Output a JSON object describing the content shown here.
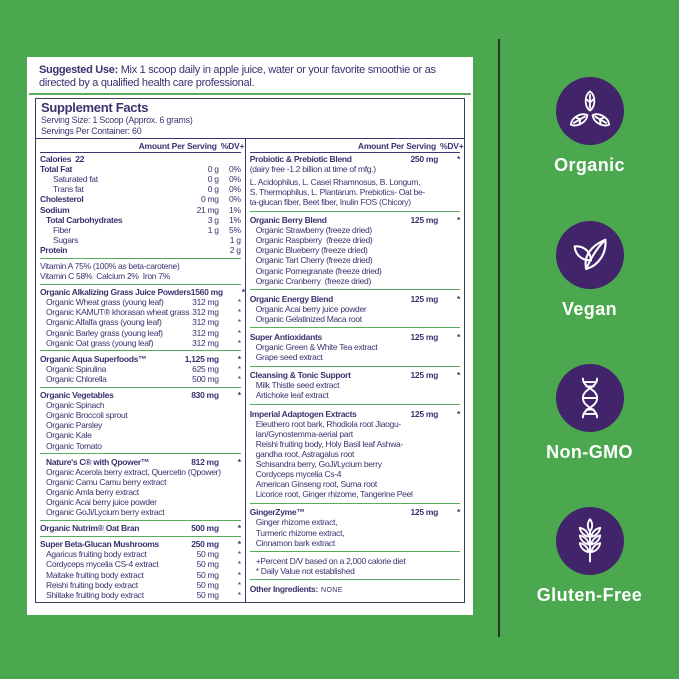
{
  "colors": {
    "background": "#4BA84E",
    "panel": "#FFFFFF",
    "text": "#3A336F",
    "rule_green": "#58AC5B",
    "badge_purple": "#41246A",
    "edge_line": "#1F3A28"
  },
  "suggested_use": {
    "label": "Suggested Use:",
    "text": " Mix 1 scoop daily in apple juice, water or your favorite smoothie or as directed by a qualified health care professional."
  },
  "facts": {
    "title": "Supplement Facts",
    "serving_size": "Serving Size: 1 Scoop (Approx. 6 grams)",
    "servings_per_container": "Servings Per Container: 60",
    "amount_header": "Amount Per Serving",
    "dv_header": "%DV+",
    "left_sections": [
      {
        "rows": [
          {
            "n": "Calories  22",
            "b": 1
          },
          {
            "n": "Total Fat",
            "b": 1,
            "a": "0 g",
            "d": "0%"
          },
          {
            "n": "Saturated fat",
            "i": 2,
            "a": "0 g",
            "d": "0%"
          },
          {
            "n": "Trans fat",
            "i": 2,
            "a": "0 g",
            "d": "0%"
          },
          {
            "n": "Cholesterol",
            "b": 1,
            "a": "0 mg",
            "d": "0%"
          },
          {
            "n": "Sodium",
            "b": 1,
            "a": "21 mg",
            "d": "1%"
          },
          {
            "n": "Total Carbohydrates",
            "b": 1,
            "i": 1,
            "a": "3 g",
            "d": "1%"
          },
          {
            "n": "Fiber",
            "i": 2,
            "a": "1 g",
            "d": "5%"
          },
          {
            "n": "Sugars",
            "i": 2,
            "a": "1 g"
          },
          {
            "n": "Protein",
            "b": 1,
            "a": "2 g"
          }
        ]
      },
      {
        "rows": [
          {
            "n": "Vitamin A 75% (100% as beta-carotene)"
          },
          {
            "n": "Vitamin C 58%  Calcium 2%  Iron 7%"
          }
        ]
      },
      {
        "rows": [
          {
            "n": "Organic Alkalizing Grass Juice Powders",
            "b": 1,
            "a": "1560 mg",
            "d": "*"
          },
          {
            "n": "Organic Wheat grass (young leaf)",
            "i": 1,
            "a": "312 mg",
            "d": "*"
          },
          {
            "n": "Organic KAMUT® khorasan wheat grass",
            "i": 1,
            "a": "312 mg",
            "d": "*"
          },
          {
            "n": "Organic Alfalfa grass (young leaf)",
            "i": 1,
            "a": "312 mg",
            "d": "*"
          },
          {
            "n": "Organic Barley grass (young leaf)",
            "i": 1,
            "a": "312 mg",
            "d": "*"
          },
          {
            "n": "Organic Oat grass (young leaf)",
            "i": 1,
            "a": "312 mg",
            "d": "*"
          }
        ]
      },
      {
        "rows": [
          {
            "n": "Organic Aqua Superfoods™",
            "b": 1,
            "a": "1,125 mg",
            "d": "*"
          },
          {
            "n": "Organic Spirulina",
            "i": 1,
            "a": "625 mg",
            "d": "*"
          },
          {
            "n": "Organic Chlorella",
            "i": 1,
            "a": "500 mg",
            "d": "*"
          }
        ]
      },
      {
        "rows": [
          {
            "n": "Organic Vegetables",
            "b": 1,
            "a": "830 mg",
            "d": "*"
          },
          {
            "n": "Organic Spinach",
            "i": 1
          },
          {
            "n": "Organic Broccoli sprout",
            "i": 1
          },
          {
            "n": "Organic Parsley",
            "i": 1
          },
          {
            "n": "Organic Kale",
            "i": 1
          },
          {
            "n": "Organic Tomato",
            "i": 1
          }
        ]
      },
      {
        "rows": [
          {
            "n": "Nature's C® with Qpower™",
            "b": 1,
            "i": 1,
            "a": "812 mg",
            "d": "*"
          },
          {
            "n": "Organic Acerola berry extract, Quercetin (Qpower)",
            "i": 1
          },
          {
            "n": "Organic Camu Camu berry extract",
            "i": 1
          },
          {
            "n": "Organic Amla berry extract",
            "i": 1
          },
          {
            "n": "Organic Acai berry juice powder",
            "i": 1
          },
          {
            "n": "Organic GoJi/Lycium berry extract",
            "i": 1
          }
        ]
      },
      {
        "rows": [
          {
            "n": "Organic Nutrim® Oat Bran",
            "b": 1,
            "a": "500 mg",
            "d": "*"
          }
        ]
      },
      {
        "rows": [
          {
            "n": "Super Beta-Glucan Mushrooms",
            "b": 1,
            "a": "250 mg",
            "d": "*"
          },
          {
            "n": "Agaricus fruiting body extract",
            "i": 1,
            "a": "50 mg",
            "d": "*"
          },
          {
            "n": "Cordyceps mycelia CS-4 extract",
            "i": 1,
            "a": "50 mg",
            "d": "*"
          },
          {
            "n": "Maitake fruiting body extract",
            "i": 1,
            "a": "50 mg",
            "d": "*"
          },
          {
            "n": "Reishi fruiting body extract",
            "i": 1,
            "a": "50 mg",
            "d": "*"
          },
          {
            "n": "Shiitake fruiting body extract",
            "i": 1,
            "a": "50 mg",
            "d": "*"
          }
        ]
      }
    ],
    "right_sections": [
      {
        "rows": [
          {
            "n": "Probiotic & Prebiotic Blend",
            "b": 1,
            "a": "250 mg",
            "d": "*"
          },
          {
            "n": "(dairy free -1.2 billion at time of mfg.)"
          },
          {
            "n": "L. Acidophilus, L. Casei Rhamnosus, B. Longum,",
            "g": 1
          },
          {
            "n": "S. Thermophilus, L. Plantarum. Prebiotics- Oat be-"
          },
          {
            "n": "ta-glucan fiber, Beet fiber, Inulin FOS (Chicory)"
          }
        ]
      },
      {
        "rows": [
          {
            "n": "Organic Berry Blend",
            "b": 1,
            "a": "125 mg",
            "d": "*"
          },
          {
            "n": "Organic Strawberry (freeze dried)",
            "i": 1
          },
          {
            "n": "Organic Raspberry  (freeze dried)",
            "i": 1
          },
          {
            "n": "Organic Blueberry (freeze dried)",
            "i": 1
          },
          {
            "n": "Organic Tart Cherry (freeze dried)",
            "i": 1
          },
          {
            "n": "Organic Pomegranate (freeze dried)",
            "i": 1
          },
          {
            "n": "Organic Cranberry  (freeze dried)",
            "i": 1
          }
        ]
      },
      {
        "rows": [
          {
            "n": "Organic Energy Blend",
            "b": 1,
            "a": "125 mg",
            "d": "*"
          },
          {
            "n": "Organic Acai berry juice powder",
            "i": 1
          },
          {
            "n": "Organic Gelatinized Maca root",
            "i": 1
          }
        ]
      },
      {
        "rows": [
          {
            "n": "Super Antioxidants",
            "b": 1,
            "a": "125 mg",
            "d": "*"
          },
          {
            "n": "Organic Green & White Tea extract",
            "i": 1
          },
          {
            "n": "Grape seed extract",
            "i": 1
          }
        ]
      },
      {
        "rows": [
          {
            "n": "Cleansing & Tonic Support",
            "b": 1,
            "a": "125 mg",
            "d": "*"
          },
          {
            "n": "Milk Thistle seed extract",
            "i": 1
          },
          {
            "n": "Artichoke leaf extract",
            "i": 1
          }
        ]
      },
      {
        "rows": [
          {
            "n": "Imperial Adaptogen Extracts",
            "b": 1,
            "a": "125 mg",
            "d": "*"
          },
          {
            "n": "Eleuthero root bark, Rhodiola root Jiaogu-",
            "i": 1
          },
          {
            "n": "lan/Gynostemma-aerial part",
            "i": 1
          },
          {
            "n": "Reishi fruiting body, Holy Basil leaf Ashwa-",
            "i": 1
          },
          {
            "n": "gandha root, Astragalus root",
            "i": 1
          },
          {
            "n": "Schisandra berry, GoJi/Lycium berry",
            "i": 1
          },
          {
            "n": "Cordyceps mycelia Cs-4",
            "i": 1
          },
          {
            "n": "American Ginseng root, Suma root",
            "i": 1
          },
          {
            "n": "Licorice root, Ginger rhizome, Tangerine Peel",
            "i": 1
          }
        ]
      },
      {
        "rows": [
          {
            "n": "GingerZyme™",
            "b": 1,
            "a": "125 mg",
            "d": "*"
          },
          {
            "n": "Ginger rhizome extract,",
            "i": 1
          },
          {
            "n": "Turmeric rhizome extract,",
            "i": 1
          },
          {
            "n": "Cinnamon bark extract",
            "i": 1
          }
        ]
      },
      {
        "rows": [
          {
            "n": "+Percent D/V based on a 2,000 calorie diet",
            "i": 1
          },
          {
            "n": "* Daily Value not established",
            "i": 1
          }
        ]
      },
      {
        "rows": [
          {
            "n": "Other Ingredients:",
            "b": 1,
            "x": "NONE"
          }
        ]
      }
    ]
  },
  "badges": [
    {
      "label": "Organic",
      "icon": "organic-leaves-icon"
    },
    {
      "label": "Vegan",
      "icon": "vegan-leaves-icon"
    },
    {
      "label": "Non-GMO",
      "icon": "dna-helix-icon"
    },
    {
      "label": "Gluten-Free",
      "icon": "wheat-stalk-icon"
    }
  ]
}
